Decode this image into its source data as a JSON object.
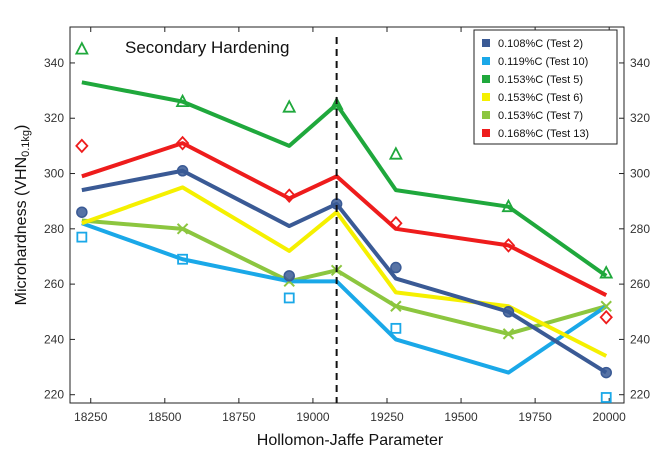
{
  "chart_data": {
    "type": "line",
    "xlabel": "Hollomon-Jaffe Parameter",
    "ylabel_main": "Microhardness (VHN",
    "ylabel_sub": "0.1kg",
    "ylabel_close": ")",
    "annotation": "Secondary Hardening",
    "xticks": [
      "18250",
      "18500",
      "18750",
      "19000",
      "19250",
      "19500",
      "19750",
      "20000"
    ],
    "yticks": [
      "220",
      "240",
      "260",
      "280",
      "300",
      "320",
      "340"
    ],
    "xlim": [
      18180,
      20050
    ],
    "ylim": [
      217,
      353
    ],
    "divider_x": 19080,
    "x": [
      18220,
      18560,
      18920,
      19080,
      19280,
      19660,
      19990
    ],
    "series": [
      {
        "name": "0.108%C (Test 2)",
        "color": "#3a5a95",
        "marker": "circle",
        "values": [
          294,
          301,
          281,
          289,
          262,
          250,
          228
        ],
        "markers": [
          [
            18220,
            286
          ],
          [
            18560,
            301
          ],
          [
            18920,
            263
          ],
          [
            19080,
            289
          ],
          [
            19280,
            266
          ],
          [
            19660,
            250
          ],
          [
            19990,
            228
          ]
        ]
      },
      {
        "name": "0.119%C (Test 10)",
        "color": "#1aa8e8",
        "marker": "square",
        "values": [
          282,
          269,
          261,
          261,
          240,
          228,
          252
        ],
        "markers": [
          [
            18220,
            277
          ],
          [
            18560,
            269
          ],
          [
            18920,
            255
          ],
          [
            19280,
            244
          ],
          [
            19990,
            219
          ]
        ]
      },
      {
        "name": "0.153%C (Test 5)",
        "color": "#1fa83c",
        "marker": "triangle",
        "values": [
          333,
          326,
          310,
          325,
          294,
          288,
          263
        ],
        "markers": [
          [
            18220,
            345
          ],
          [
            18560,
            326
          ],
          [
            18920,
            324
          ],
          [
            19080,
            325
          ],
          [
            19280,
            307
          ],
          [
            19660,
            288
          ],
          [
            19990,
            264
          ]
        ]
      },
      {
        "name": "0.153%C (Test 6)",
        "color": "#f5f000",
        "marker": "circle",
        "values": [
          282,
          295,
          272,
          286,
          257,
          252,
          234
        ],
        "markers": []
      },
      {
        "name": "0.153%C (Test 7)",
        "color": "#8cc63f",
        "marker": "cross",
        "values": [
          283,
          280,
          261,
          265,
          252,
          242,
          252
        ],
        "markers": [
          [
            18560,
            280
          ],
          [
            18920,
            261
          ],
          [
            19080,
            265
          ],
          [
            19280,
            252
          ],
          [
            19660,
            242
          ],
          [
            19990,
            252
          ]
        ]
      },
      {
        "name": "0.168%C (Test 13)",
        "color": "#ee1c1c",
        "marker": "diamond",
        "values": [
          299,
          311,
          291,
          299,
          280,
          274,
          256
        ],
        "markers": [
          [
            18220,
            310
          ],
          [
            18560,
            311
          ],
          [
            18920,
            292
          ],
          [
            19280,
            282
          ],
          [
            19660,
            274
          ],
          [
            19990,
            248
          ]
        ]
      }
    ]
  }
}
